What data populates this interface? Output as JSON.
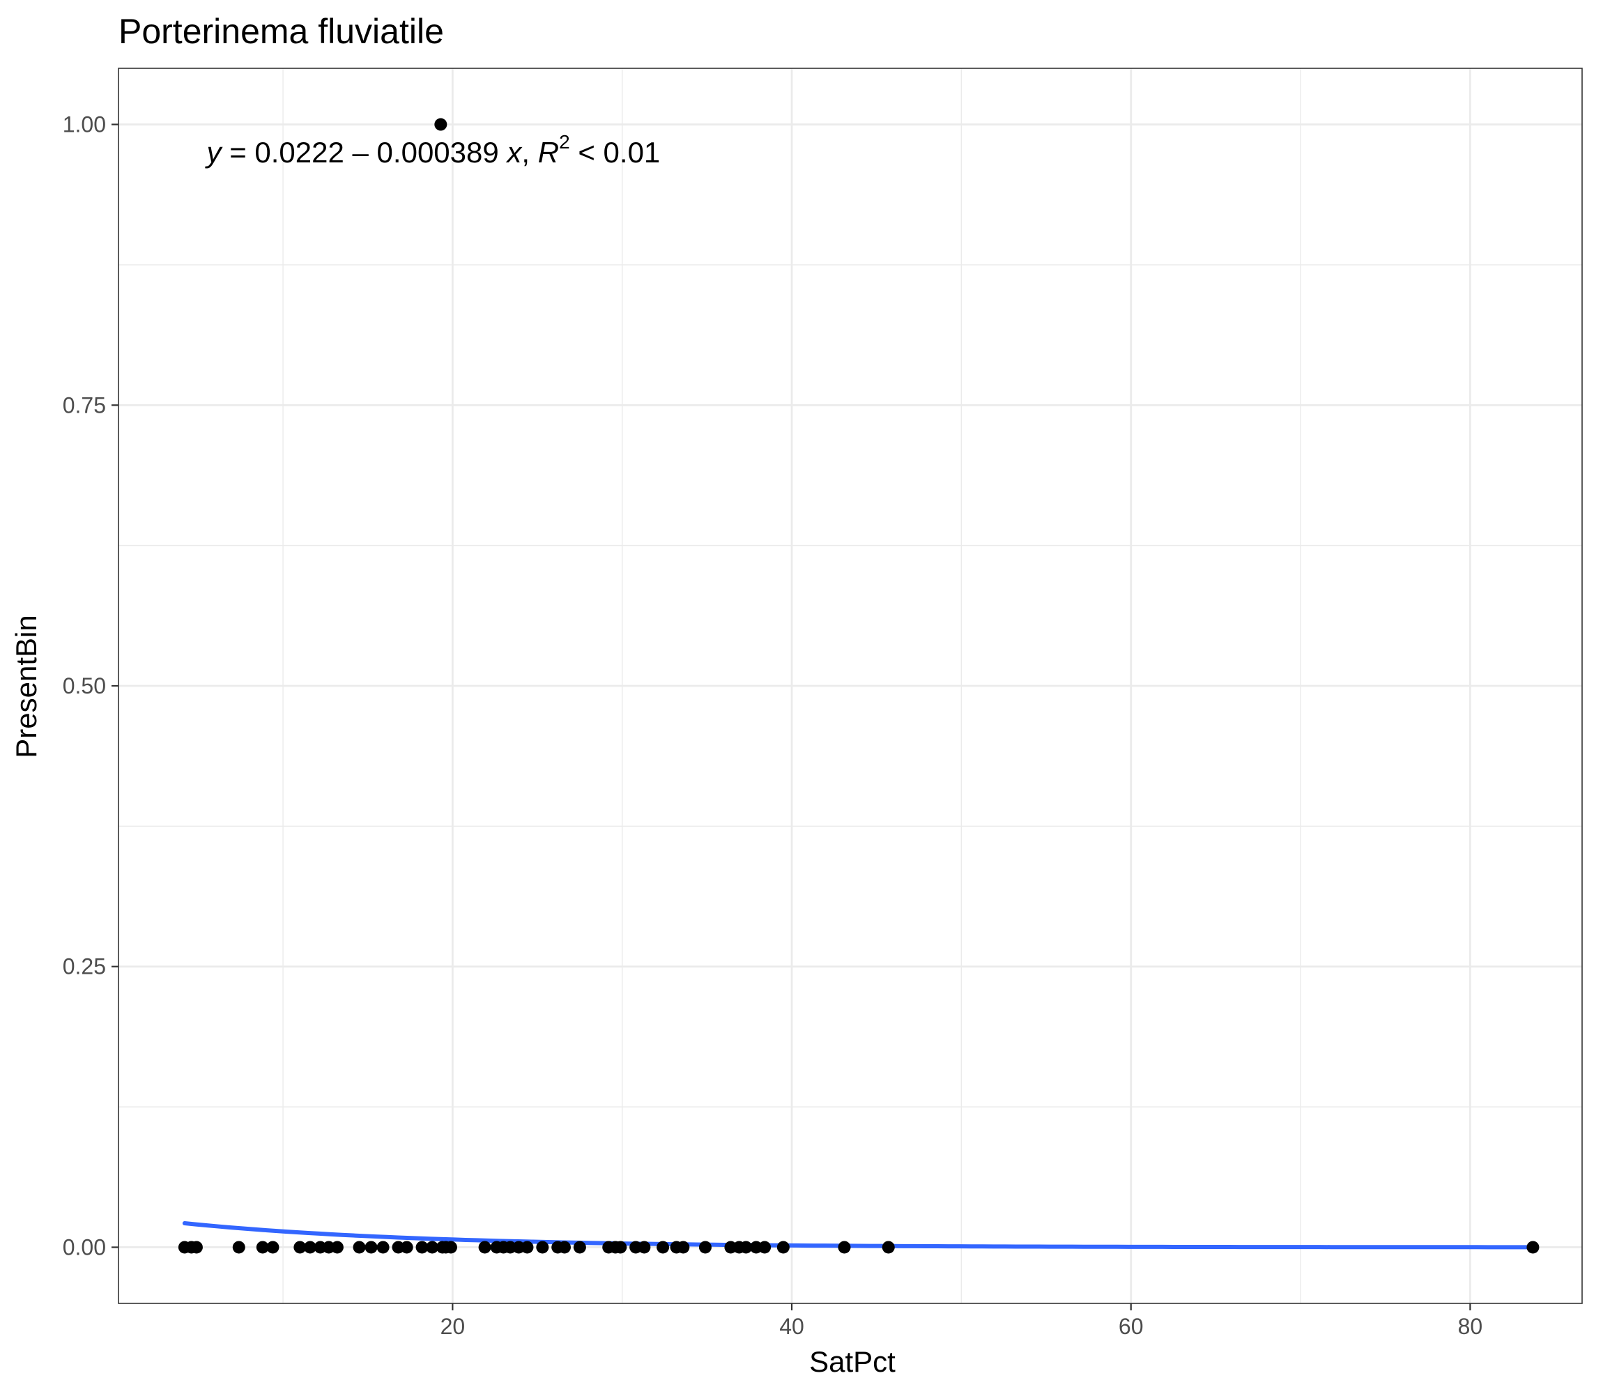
{
  "chart_data": {
    "type": "scatter",
    "title": "Porterinema fluviatile",
    "xlabel": "SatPct",
    "ylabel": "PresentBin",
    "xlim": [
      0.3,
      86.6
    ],
    "ylim": [
      -0.05,
      1.05
    ],
    "x_ticks": [
      20,
      40,
      60,
      80
    ],
    "x_tick_labels": [
      "20",
      "40",
      "60",
      "80"
    ],
    "y_ticks": [
      0,
      0.25,
      0.5,
      0.75,
      1
    ],
    "y_tick_labels": [
      "0.00",
      "0.25",
      "0.50",
      "0.75",
      "1.00"
    ],
    "grid": true,
    "points": {
      "x": [
        4.2,
        4.6,
        4.9,
        7.4,
        8.8,
        9.4,
        11.0,
        11.6,
        12.2,
        12.7,
        13.2,
        14.5,
        15.2,
        15.9,
        16.8,
        17.3,
        18.2,
        18.8,
        19.4,
        19.6,
        19.9,
        21.9,
        22.6,
        23.0,
        23.4,
        23.9,
        24.4,
        25.3,
        26.2,
        26.6,
        27.5,
        29.2,
        29.6,
        29.9,
        30.8,
        31.3,
        32.4,
        33.2,
        33.6,
        34.9,
        36.4,
        36.9,
        37.3,
        37.9,
        38.4,
        39.5,
        43.1,
        45.7,
        19.3,
        83.7
      ],
      "y": [
        0,
        0,
        0,
        0,
        0,
        0,
        0,
        0,
        0,
        0,
        0,
        0,
        0,
        0,
        0,
        0,
        0,
        0,
        0,
        0,
        0,
        0,
        0,
        0,
        0,
        0,
        0,
        0,
        0,
        0,
        0,
        0,
        0,
        0,
        0,
        0,
        0,
        0,
        0,
        0,
        0,
        0,
        0,
        0,
        0,
        0,
        0,
        0,
        1,
        0
      ],
      "color": "#000000"
    },
    "fit_line": {
      "model": "logistic",
      "x_range": [
        4.2,
        83.7
      ],
      "intercept": -3.52,
      "slope": -0.0725,
      "color": "#3366FF"
    },
    "annotation": {
      "parts": [
        {
          "text": "y",
          "italic": true
        },
        {
          "text": " = 0.0222 – 0.000389 ",
          "italic": false
        },
        {
          "text": "x",
          "italic": true
        },
        {
          "text": ",  ",
          "italic": false
        },
        {
          "text": "R",
          "italic": true
        },
        {
          "text": "2",
          "sup": true
        },
        {
          "text": " < 0.01",
          "italic": false
        }
      ],
      "x": 5.5,
      "y": 0.975
    }
  }
}
